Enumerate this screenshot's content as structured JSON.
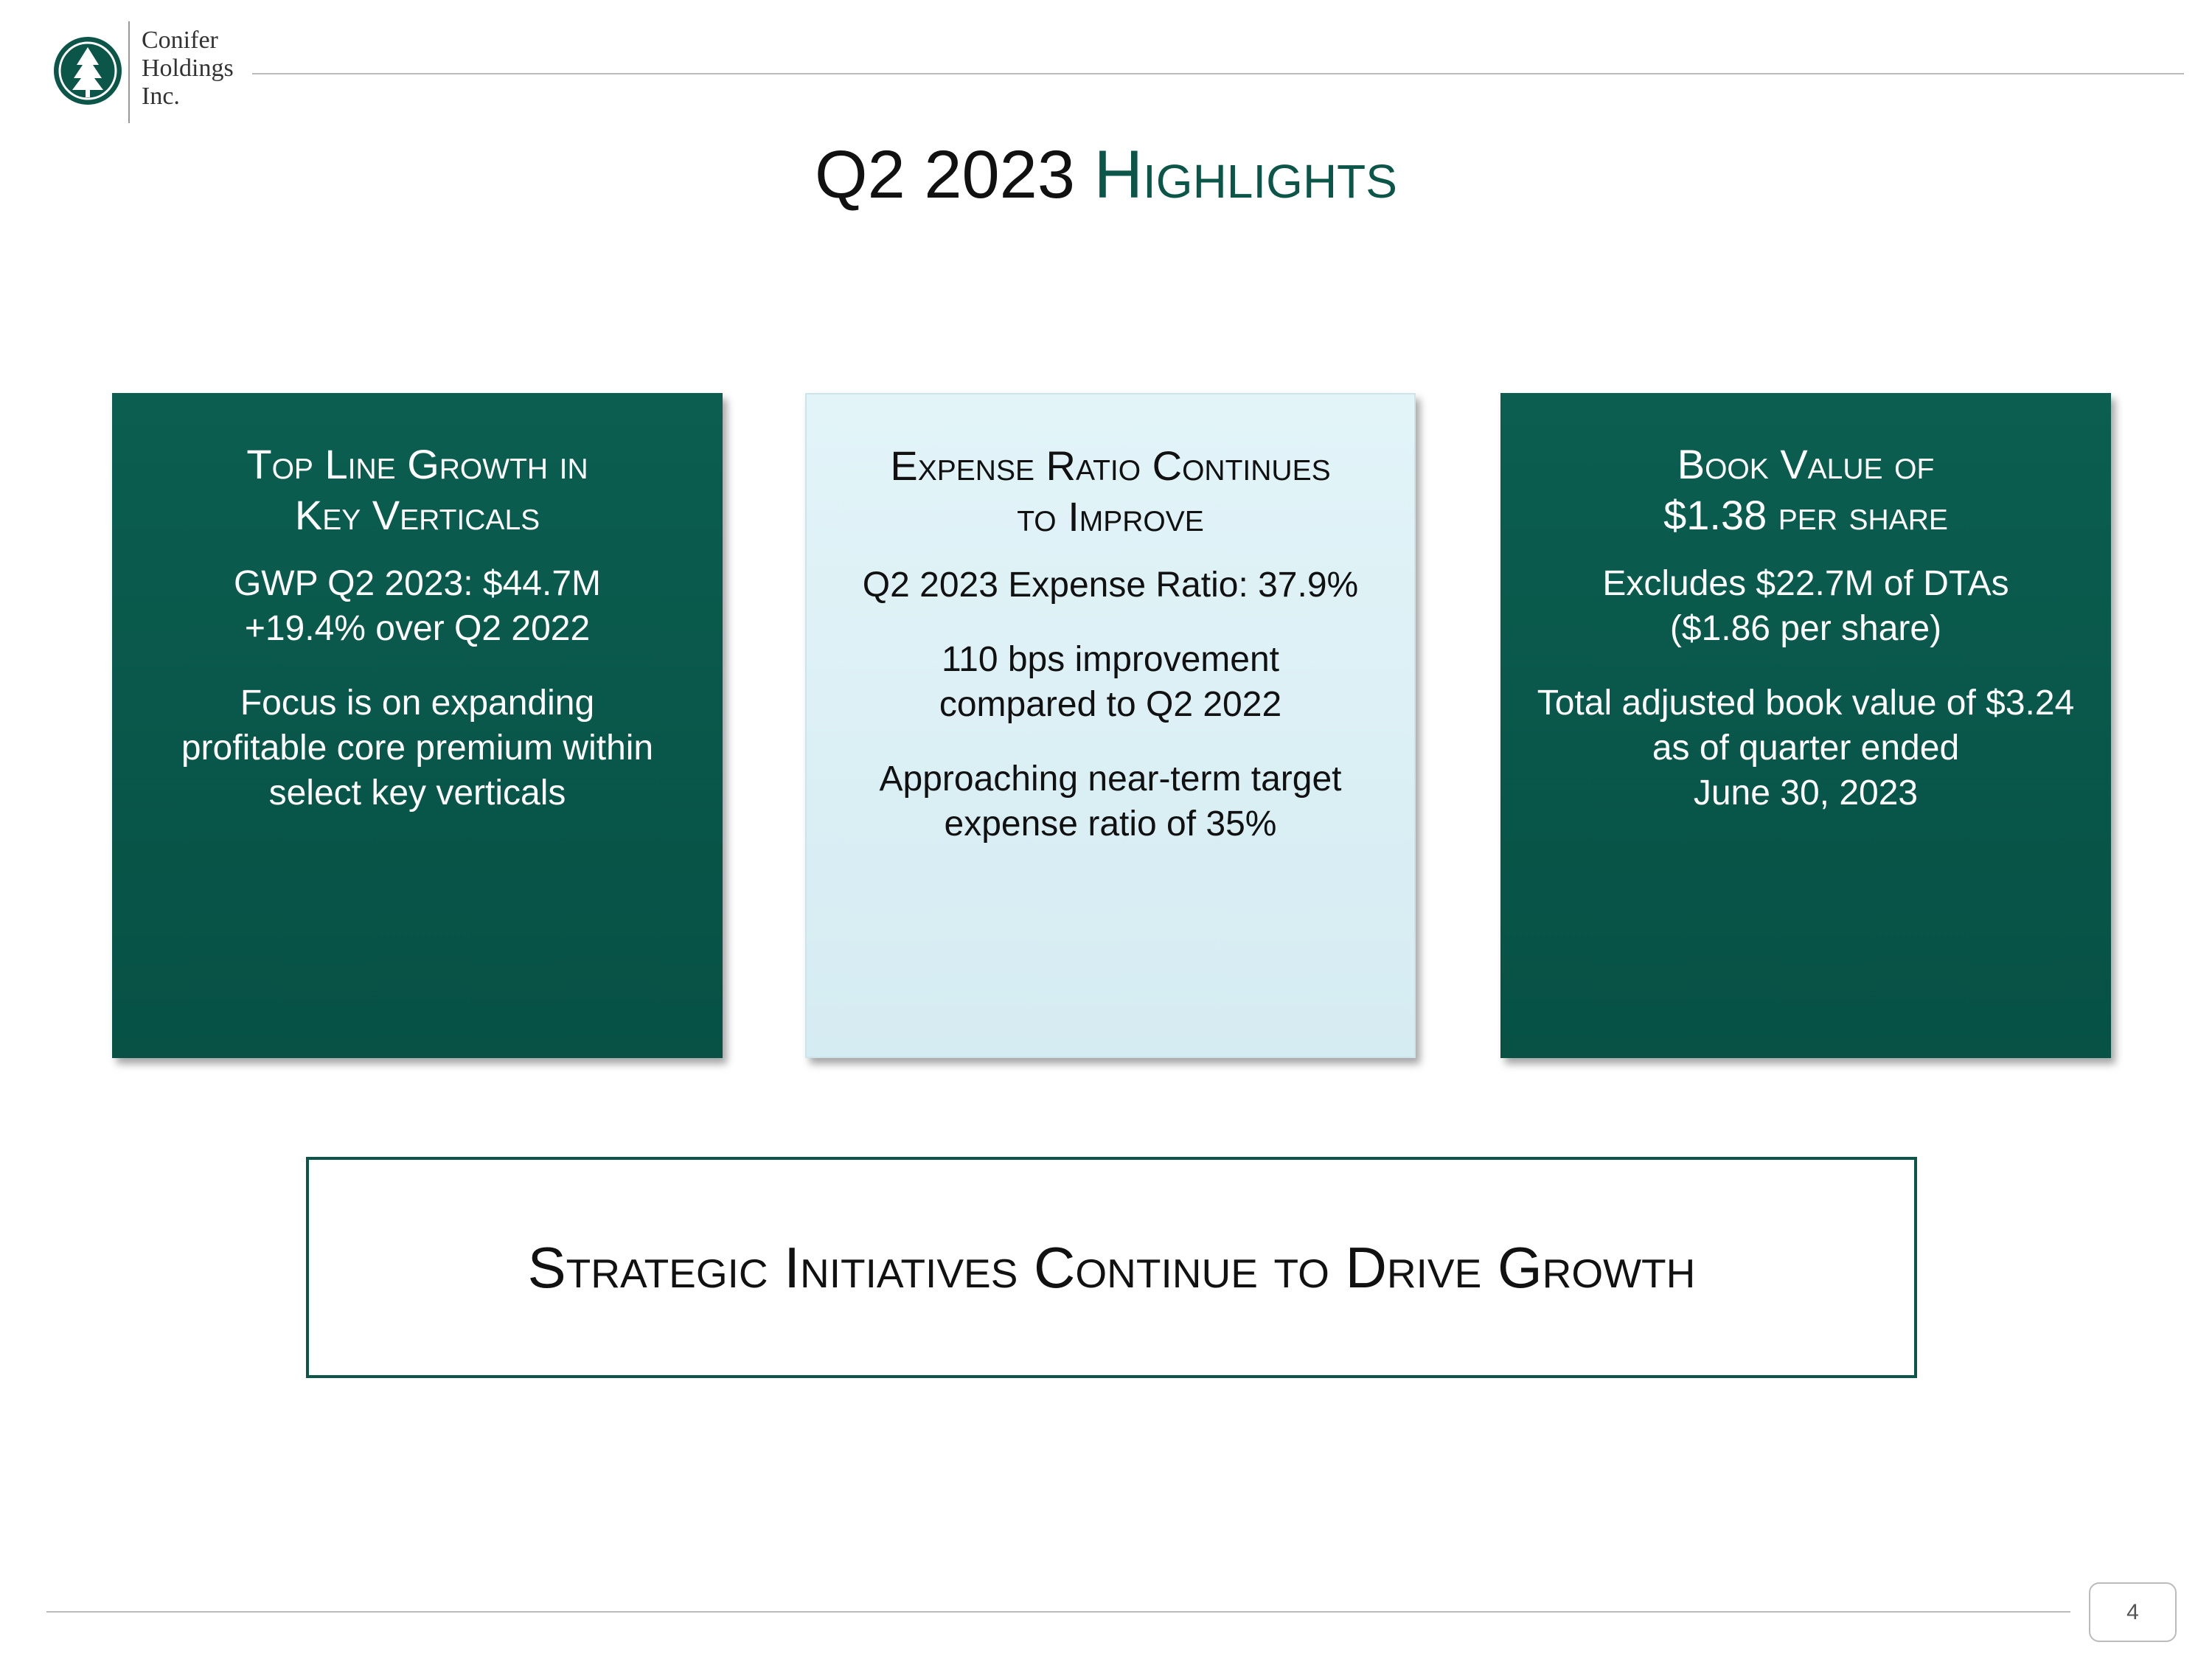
{
  "header": {
    "logo_lines": [
      "Conifer",
      "Holdings",
      "Inc."
    ]
  },
  "title": {
    "lead": "Q2 2023",
    "accent": "Highlights"
  },
  "cards": [
    {
      "title_lines": [
        "Top Line Growth in",
        "Key Verticals"
      ],
      "paragraphs": [
        [
          "GWP Q2 2023: $44.7M",
          "+19.4% over Q2 2022"
        ],
        [
          "Focus is on expanding",
          "profitable core premium within",
          "select key verticals"
        ]
      ]
    },
    {
      "title_lines": [
        "Expense Ratio Continues",
        "to Improve"
      ],
      "paragraphs": [
        [
          "Q2 2023 Expense Ratio: 37.9%"
        ],
        [
          "110 bps improvement",
          "compared to Q2 2022"
        ],
        [
          "Approaching near-term target",
          "expense ratio of 35%"
        ]
      ]
    },
    {
      "title_lines": [
        "Book Value of",
        "$1.38 per share"
      ],
      "paragraphs": [
        [
          "Excludes $22.7M of DTAs",
          "($1.86 per share)"
        ],
        [
          "Total adjusted book value of $3.24",
          "as of quarter ended",
          "June 30, 2023"
        ]
      ]
    }
  ],
  "banner": "Strategic Initiatives Continue to Drive Growth",
  "page_number": 4
}
